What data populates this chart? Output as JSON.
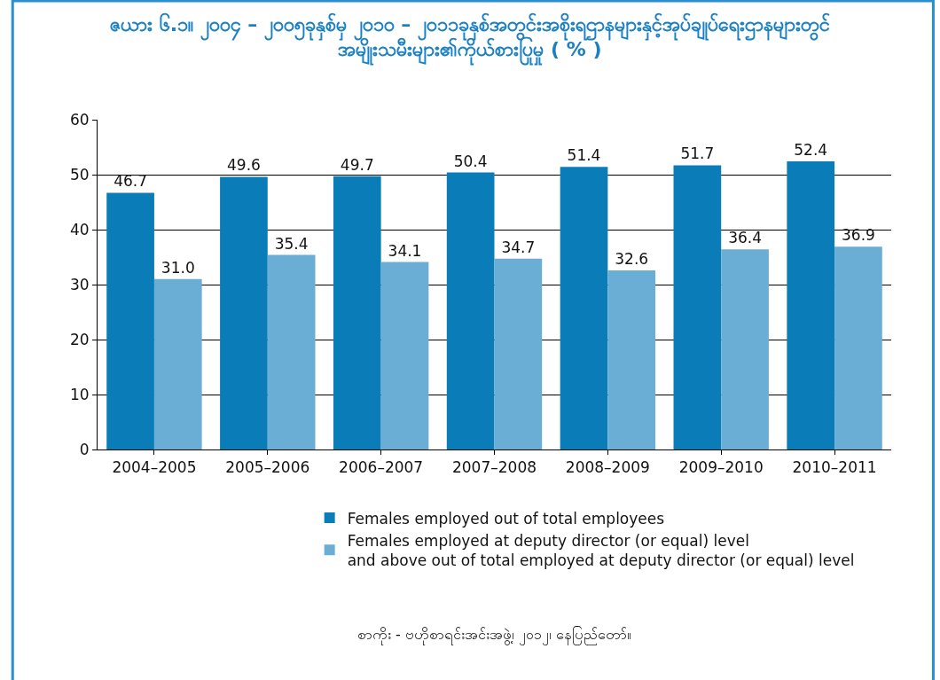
{
  "chart_data": {
    "type": "bar",
    "title": "ဇယား ၆.၁။ ၂၀၀၄ – ၂၀၀၅ခုနှစ်မှ ၂၀၁၀ – ၂၀၁၁ခုနှစ်အတွင်းအစိုးရဌာနများနှင့်အုပ်ချုပ်ရေးဌာနများတွင်\nအမျိုးသမီးများ၏ကိုယ်စားပြုမှု ( % )",
    "categories": [
      "2004–2005",
      "2005–2006",
      "2006–2007",
      "2007–2008",
      "2008–2009",
      "2009–2010",
      "2010–2011"
    ],
    "series": [
      {
        "name": "Females employed out of total employees",
        "color": "#0a7db8",
        "values": [
          46.7,
          49.6,
          49.7,
          50.4,
          51.4,
          51.7,
          52.4
        ],
        "value_labels": [
          "46.7",
          "49.6",
          "49.7",
          "50.4",
          "51.4",
          "51.7",
          "52.4"
        ]
      },
      {
        "name": "Females employed at deputy director (or equal) level\nand above out of total employed at deputy director (or equal) level",
        "color": "#6aaed6",
        "values": [
          31.0,
          35.4,
          34.1,
          34.7,
          32.6,
          36.4,
          36.9
        ],
        "value_labels": [
          "31.0",
          "35.4",
          "34.1",
          "34.7",
          "32.6",
          "36.4",
          "36.9"
        ]
      }
    ],
    "ylim": [
      0,
      60
    ],
    "yticks": [
      0,
      10,
      20,
      30,
      40,
      50,
      60
    ],
    "grid": "y",
    "legend": "bottom",
    "annotations": [
      "စာကိုး - ဗဟိုစာရင်းအင်းအဖွဲ့၊ ၂၀၁၂၊ နေပြည်တော်။"
    ]
  }
}
